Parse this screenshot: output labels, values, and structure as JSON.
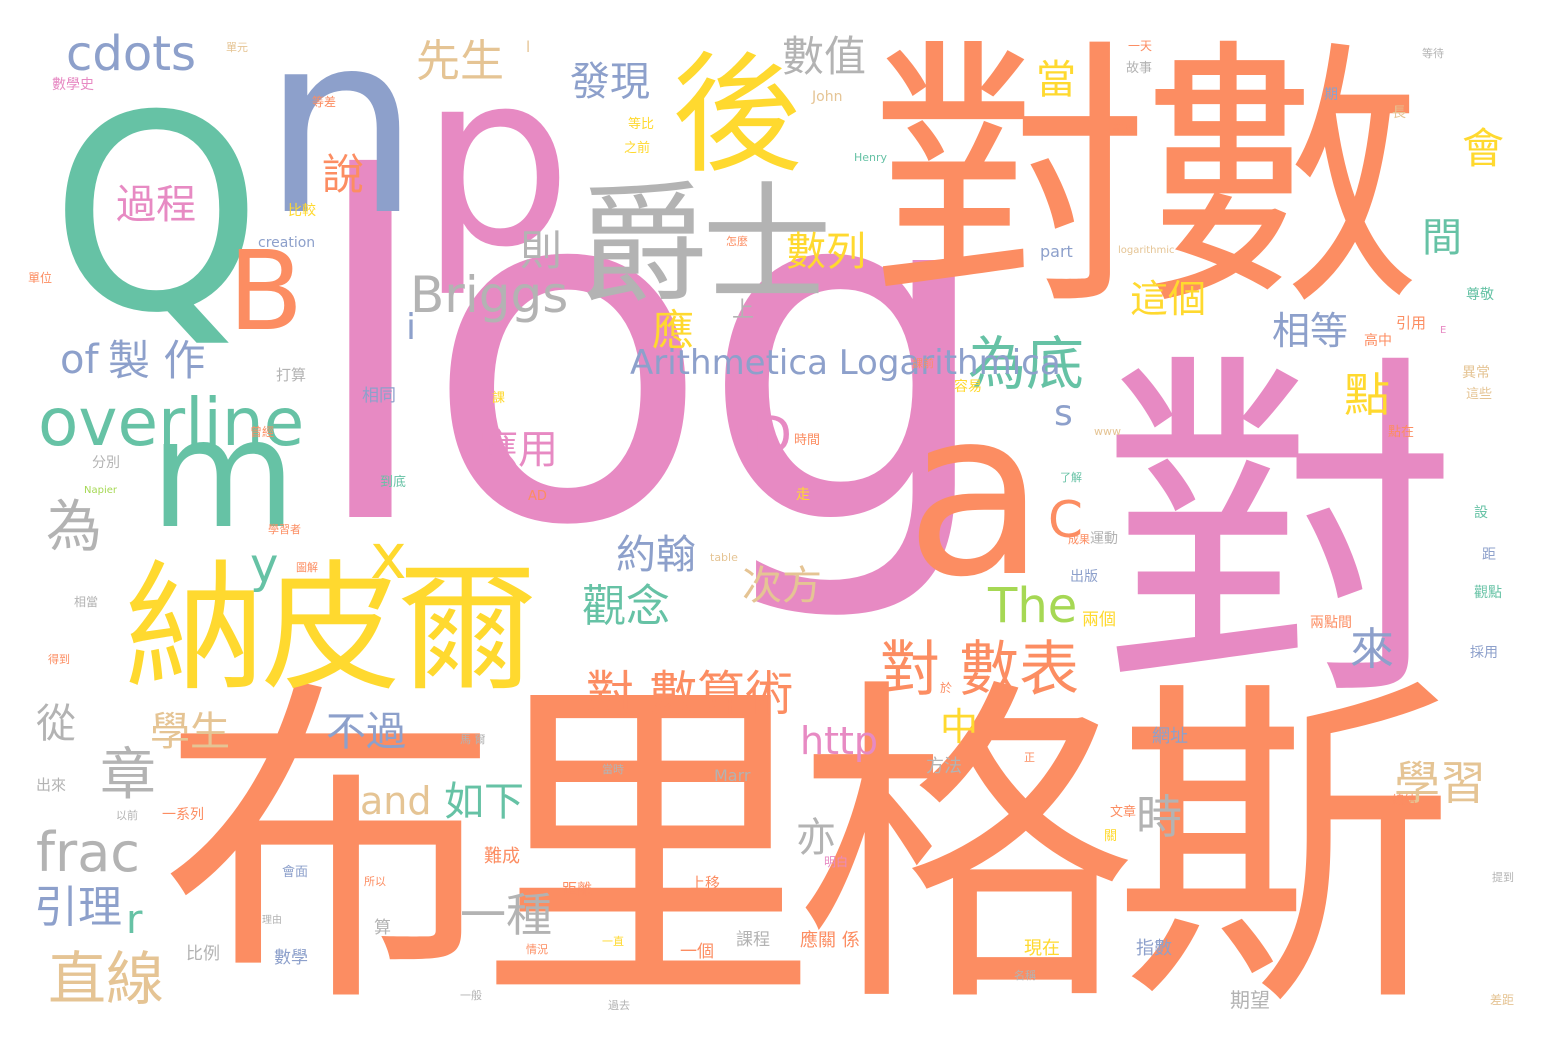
{
  "palette": {
    "orange": "#fc8d62",
    "green": "#66c2a5",
    "blue": "#8da0cb",
    "pink": "#e78ac3",
    "yellow": "#ffd92f",
    "lime": "#a6d854",
    "tan": "#e5c494",
    "gray": "#b3b3b3"
  },
  "words": [
    "log",
    "布里格斯",
    "對數",
    "對",
    "Q",
    "n",
    "p",
    "爵士",
    "納皮爾",
    "後",
    "a",
    "m",
    "overline",
    "cdots",
    "Briggs",
    "為底",
    "對 數表",
    "對 數算術",
    "frac",
    "直線",
    "章",
    "數值",
    "先生",
    "發現",
    "數列",
    "過程",
    "D",
    "製 作",
    "相等",
    "The",
    "C",
    "為",
    "觀念",
    "約翰",
    "學習",
    "http",
    "and",
    "如下",
    "次方",
    "引理",
    "不過",
    "應用",
    "學生",
    "從",
    "一種",
    "時",
    "亦",
    "來",
    "中",
    "點",
    "會",
    "間",
    "這個",
    "當",
    "則",
    "說",
    "應",
    "y",
    "x",
    "上",
    "Arithmetica Logarithmica",
    "s",
    "of",
    "B",
    "r",
    "i",
    "l",
    "John",
    "Henry",
    "creation",
    "www",
    "Napier",
    "table",
    "Marr",
    "AD",
    "E",
    "logarithmic",
    "part",
    "相同",
    "分別",
    "網址",
    "方法",
    "指數",
    "現在",
    "數學",
    "比例",
    "算",
    "期望",
    "應關 係",
    "課程",
    "一個",
    "上移",
    "距離",
    "難成",
    "馬 爾",
    "引用",
    "高中",
    "採用",
    "觀點",
    "兩點間",
    "兩個",
    "出版",
    "運動",
    "距",
    "設",
    "異常",
    "這些",
    "尊敬",
    "點在",
    "長",
    "期",
    "課",
    "時間",
    "到底",
    "出來",
    "數學史",
    "單元",
    "故事",
    "一天",
    "一系列",
    "相當",
    "打算",
    "會面",
    "關",
    "比較",
    "怎麼",
    "了解",
    "明白",
    "文章",
    "當時",
    "容易",
    "走",
    "於",
    "正",
    "得到",
    "課前",
    "曾經",
    "以前",
    "一般",
    "所以",
    "情況",
    "理由",
    "圖解",
    "一直",
    "提到",
    "成果",
    "等待",
    "學習者",
    "過去",
    "之前",
    "等比",
    "等差",
    "名稱",
    "單位",
    "總結",
    "差距",
    "重要",
    "關係"
  ]
}
